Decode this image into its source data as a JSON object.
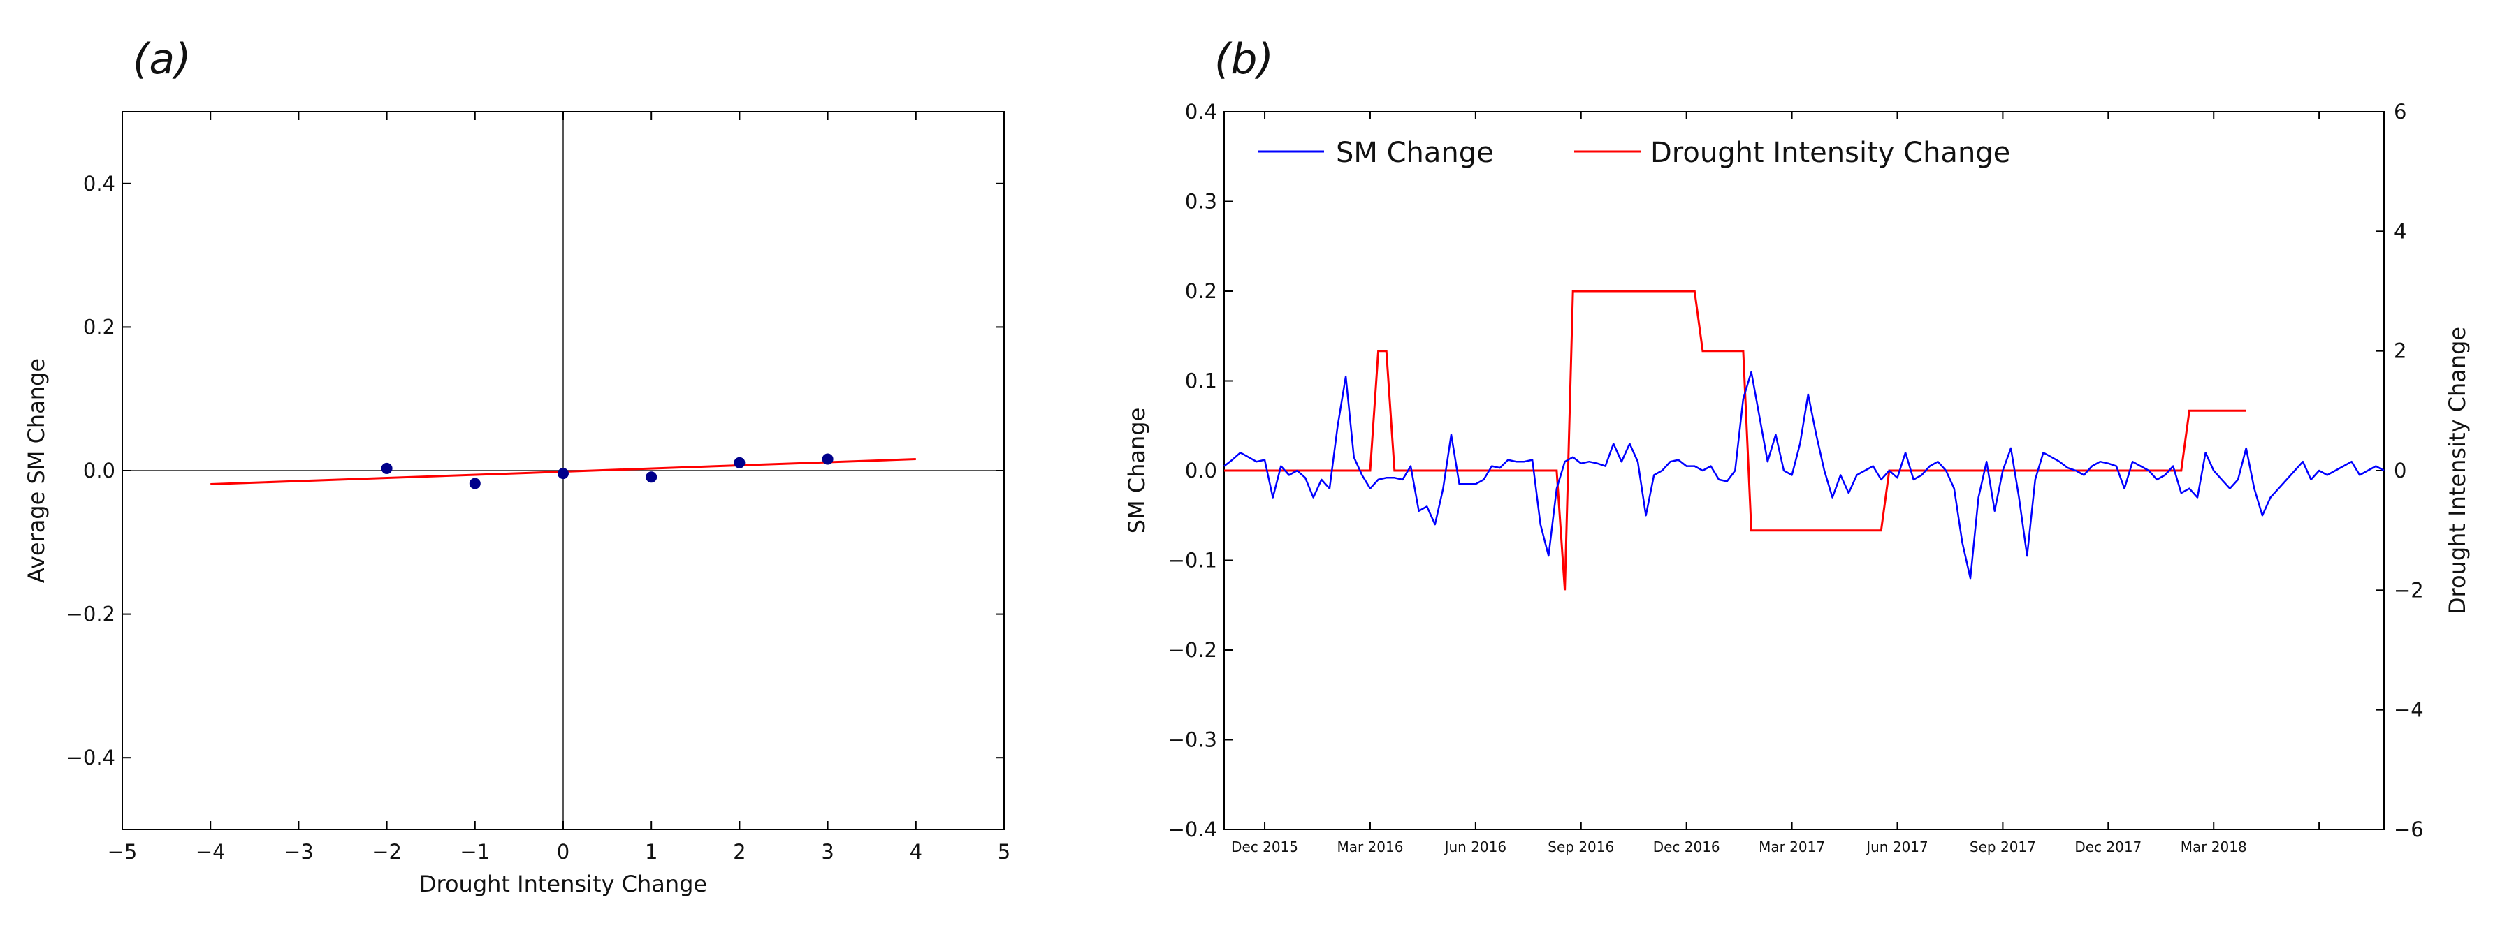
{
  "chart_data": [
    {
      "panel_label": "(a)",
      "type": "scatter",
      "title": "",
      "xlabel": "Drought Intensity Change",
      "ylabel": "Average SM Change",
      "xlim": [
        -5,
        5
      ],
      "ylim": [
        -0.5,
        0.5
      ],
      "x_ticks": [
        -5,
        -4,
        -3,
        -2,
        -1,
        0,
        1,
        2,
        3,
        4,
        5
      ],
      "x_tick_labels": [
        "−5",
        "−4",
        "−3",
        "−2",
        "−1",
        "0",
        "1",
        "2",
        "3",
        "4",
        "5"
      ],
      "y_ticks": [
        -0.4,
        -0.2,
        0.0,
        0.2,
        0.4
      ],
      "y_tick_labels": [
        "−0.4",
        "−0.2",
        "0.0",
        "0.2",
        "0.4"
      ],
      "reference_lines": {
        "x": 0,
        "y": 0
      },
      "points": {
        "color": "#00008b",
        "x": [
          -2,
          -1,
          0,
          1,
          2,
          3
        ],
        "y": [
          0.003,
          -0.018,
          -0.004,
          -0.009,
          0.011,
          0.016
        ]
      },
      "fit_line": {
        "color": "#ff0000",
        "x": [
          -4,
          4
        ],
        "y": [
          -0.019,
          0.016
        ]
      }
    },
    {
      "panel_label": "(b)",
      "type": "line",
      "title": "",
      "xlabel": "",
      "ylabel": "SM Change",
      "ylabel_color": "#0000ff",
      "y2label": "Drought Intensity Change",
      "y2label_color": "#ff0000",
      "ylim": [
        -0.4,
        0.4
      ],
      "y2lim": [
        -6,
        6
      ],
      "y_ticks": [
        -0.4,
        -0.3,
        -0.2,
        -0.1,
        0.0,
        0.1,
        0.2,
        0.3,
        0.4
      ],
      "y_tick_labels": [
        "−0.4",
        "−0.3",
        "−0.2",
        "−0.1",
        "0.0",
        "0.1",
        "0.2",
        "0.3",
        "0.4"
      ],
      "y2_ticks": [
        -6,
        -4,
        -2,
        0,
        2,
        4,
        6
      ],
      "y2_tick_labels": [
        "−6",
        "−4",
        "−2",
        "0",
        "2",
        "4",
        "6"
      ],
      "x_range_weeks": [
        0,
        143
      ],
      "x_ticks_weeks": [
        5,
        18,
        31,
        44,
        57,
        70,
        83,
        96,
        109,
        122,
        135
      ],
      "x_tick_labels": [
        "Dec 2015",
        "Mar 2016",
        "Jun 2016",
        "Sep 2016",
        "Dec 2016",
        "Mar 2017",
        "Jun 2017",
        "Sep 2017",
        "Dec 2017",
        "Mar 2018"
      ],
      "x_tick_label_weeks": [
        5,
        18,
        31,
        44,
        57,
        70,
        83,
        96,
        109,
        122
      ],
      "legend": {
        "position": "top-left",
        "entries": [
          "SM Change",
          "Drought Intensity Change"
        ]
      },
      "series": [
        {
          "name": "SM Change",
          "color": "#0000ff",
          "axis": "left",
          "x_weeks": [
            0,
            1,
            2,
            3,
            4,
            5,
            6,
            7,
            8,
            9,
            10,
            11,
            12,
            13,
            14,
            15,
            16,
            17,
            18,
            19,
            20,
            21,
            22,
            23,
            24,
            25,
            26,
            27,
            28,
            29,
            30,
            31,
            32,
            33,
            34,
            35,
            36,
            37,
            38,
            39,
            40,
            41,
            42,
            43,
            44,
            45,
            46,
            47,
            48,
            49,
            50,
            51,
            52,
            53,
            54,
            55,
            56,
            57,
            58,
            59,
            60,
            61,
            62,
            63,
            64,
            65,
            66,
            67,
            68,
            69,
            70,
            71,
            72,
            73,
            74,
            75,
            76,
            77,
            78,
            79,
            80,
            81,
            82,
            83,
            84,
            85,
            86,
            87,
            88,
            89,
            90,
            91,
            92,
            93,
            94,
            95,
            96,
            97,
            98,
            99,
            100,
            101,
            102,
            103,
            104,
            105,
            106,
            107,
            108,
            109,
            110,
            111,
            112,
            113,
            114,
            115,
            116,
            117,
            118,
            119,
            120,
            121,
            122,
            123,
            124,
            125,
            126,
            127,
            128,
            129,
            130,
            131,
            132,
            133,
            134,
            135,
            136,
            137,
            138,
            139,
            140,
            141,
            142,
            143
          ],
          "values": [
            0.005,
            0.012,
            0.02,
            0.015,
            0.01,
            0.012,
            -0.03,
            0.005,
            -0.005,
            0.0,
            -0.008,
            -0.03,
            -0.01,
            -0.02,
            0.05,
            0.105,
            0.015,
            -0.005,
            -0.02,
            -0.01,
            -0.008,
            -0.008,
            -0.01,
            0.005,
            -0.045,
            -0.04,
            -0.06,
            -0.02,
            0.04,
            -0.015,
            -0.015,
            -0.015,
            -0.01,
            0.005,
            0.003,
            0.012,
            0.01,
            0.01,
            0.012,
            -0.06,
            -0.095,
            -0.02,
            0.01,
            0.015,
            0.008,
            0.01,
            0.008,
            0.005,
            0.03,
            0.01,
            0.03,
            0.01,
            -0.05,
            -0.005,
            0.0,
            0.01,
            0.012,
            0.005,
            0.005,
            0.0,
            0.005,
            -0.01,
            -0.012,
            0.0,
            0.08,
            0.11,
            0.06,
            0.01,
            0.04,
            0.0,
            -0.005,
            0.03,
            0.085,
            0.04,
            0.0,
            -0.03,
            -0.005,
            -0.025,
            -0.005,
            0.0,
            0.005,
            -0.01,
            0.0,
            -0.008,
            0.02,
            -0.01,
            -0.005,
            0.005,
            0.01,
            0.0,
            -0.02,
            -0.08,
            -0.12,
            -0.03,
            0.01,
            -0.045,
            0.0,
            0.025,
            -0.03,
            -0.095,
            -0.01,
            0.02,
            0.015,
            0.01,
            0.003,
            0.0,
            -0.005,
            0.005,
            0.01,
            0.008,
            0.005,
            -0.02,
            0.01,
            0.005,
            0.0,
            -0.01,
            -0.005,
            0.005,
            -0.025,
            -0.02,
            -0.03,
            0.02,
            0.0,
            -0.01,
            -0.02,
            -0.01,
            0.025,
            -0.02,
            -0.05,
            -0.03,
            -0.02,
            -0.01,
            0.0,
            0.01,
            -0.01,
            0.0,
            -0.005,
            0.0,
            0.005,
            0.01,
            -0.005,
            0.0,
            0.005,
            0.0
          ]
        },
        {
          "name": "Drought Intensity Change",
          "color": "#ff0000",
          "axis": "right",
          "step_points": [
            [
              0,
              0
            ],
            [
              18,
              0
            ],
            [
              19,
              2
            ],
            [
              20,
              2
            ],
            [
              21,
              0
            ],
            [
              41,
              0
            ],
            [
              42,
              -2
            ],
            [
              43,
              3
            ],
            [
              58,
              3
            ],
            [
              59,
              2
            ],
            [
              64,
              2
            ],
            [
              65,
              -1
            ],
            [
              81,
              -1
            ],
            [
              82,
              0
            ],
            [
              118,
              0
            ],
            [
              119,
              1
            ],
            [
              126,
              1
            ]
          ]
        }
      ]
    }
  ]
}
